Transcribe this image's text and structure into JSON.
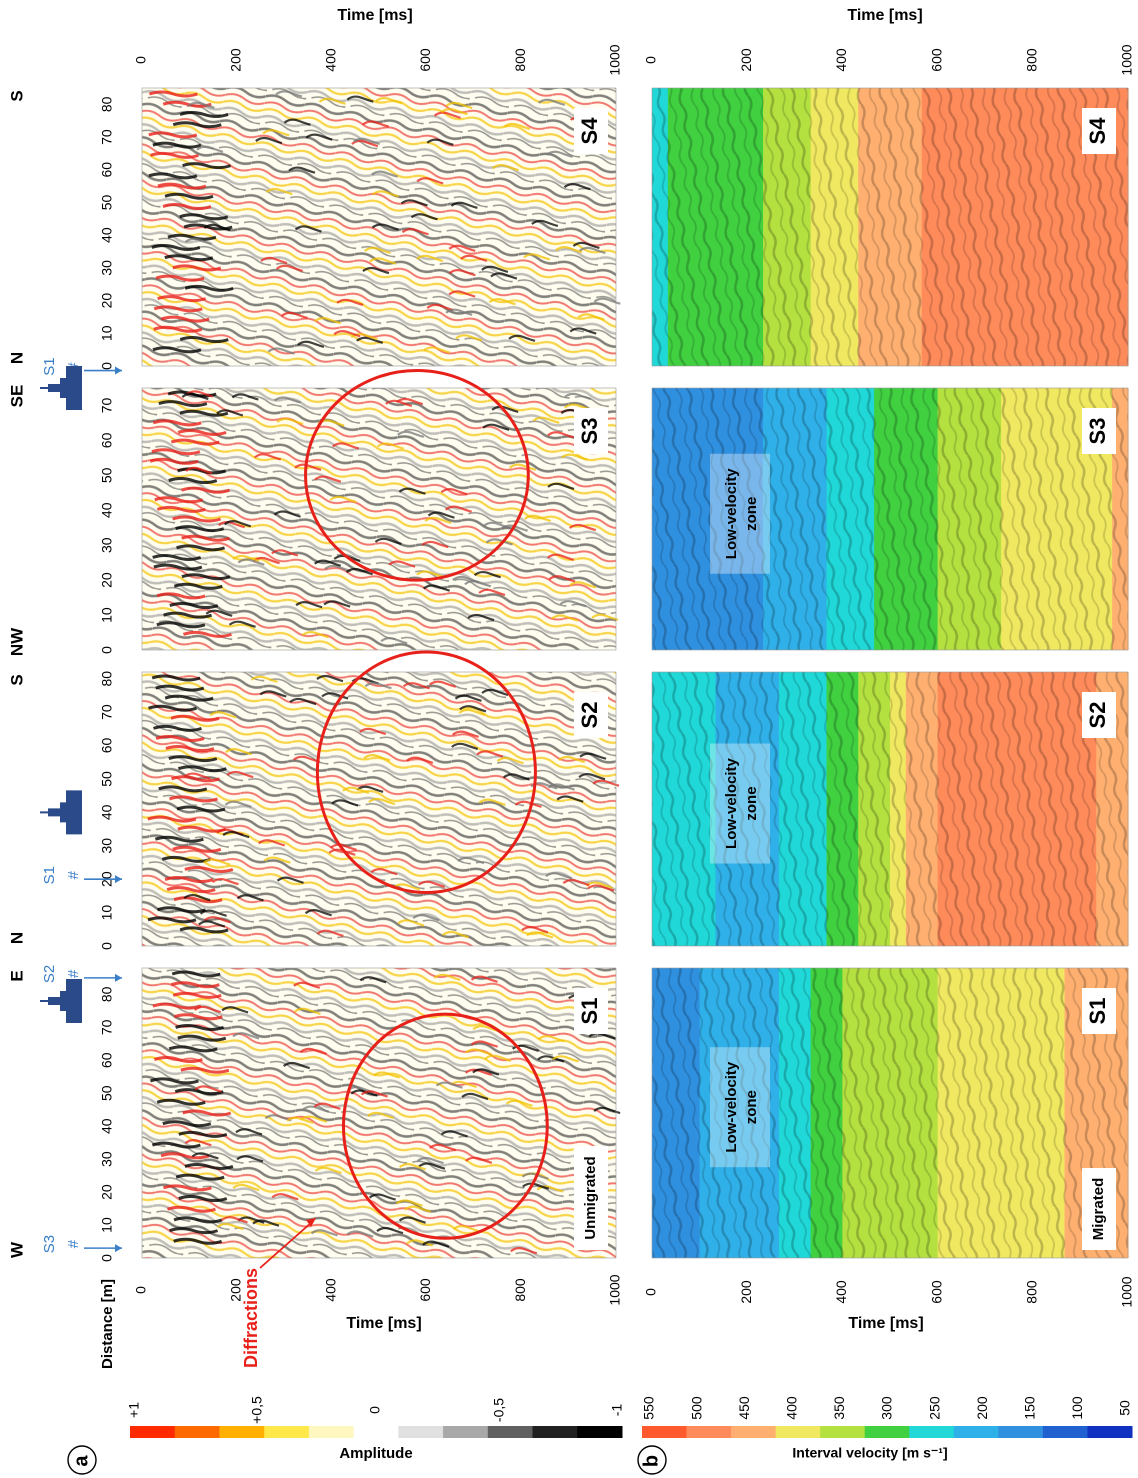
{
  "panel_letters": [
    "a",
    "b"
  ],
  "axis_labels": {
    "time": "Time [ms]",
    "distance": "Distance [m]",
    "amplitude": "Amplitude",
    "velocity": "Interval velocity [m s⁻¹]"
  },
  "time_ticks": [
    "0",
    "200",
    "400",
    "600",
    "800",
    "1000"
  ],
  "distance_ticks": [
    "0",
    "10",
    "20",
    "30",
    "40",
    "50",
    "60",
    "70",
    "80"
  ],
  "amplitude_ticks": [
    "+1",
    "+0,5",
    "0",
    "-0,5",
    "-1"
  ],
  "velocity_ticks": [
    "550",
    "500",
    "450",
    "400",
    "350",
    "300",
    "250",
    "200",
    "150",
    "100",
    "50"
  ],
  "colors": {
    "amp_scale": [
      "#ff2a00",
      "#ff6a00",
      "#ffb000",
      "#ffe84a",
      "#fff7c0",
      "#ffffff",
      "#e0e0e0",
      "#a8a8a8",
      "#606060",
      "#202020",
      "#000000"
    ],
    "vel_scale": [
      "#ff5a2e",
      "#ff8a5a",
      "#ffb070",
      "#f0e860",
      "#b4e040",
      "#40d040",
      "#20d8d8",
      "#30b0e8",
      "#3090e0",
      "#2060d0",
      "#1030c0"
    ],
    "annotation_red": "#e8201a",
    "annotation_blue": "#3a7fc8",
    "church": "#2a4a8a"
  },
  "sections": [
    {
      "id": "S1",
      "label": "S1",
      "start_dir": "W",
      "end_dir": "E",
      "max_distance": 88,
      "crossings": [
        {
          "label": "S3",
          "distance": 3
        },
        {
          "label": "S2",
          "distance": 85
        }
      ],
      "church_distance": 78,
      "ellipse": {
        "d_center": 40,
        "t_center": 640,
        "d_radius": 34,
        "t_radius": 215
      }
    },
    {
      "id": "S2",
      "label": "S2",
      "start_dir": "N",
      "end_dir": "S",
      "max_distance": 82,
      "crossings": [
        {
          "label": "S1",
          "distance": 20
        }
      ],
      "church_distance": 40,
      "ellipse": {
        "d_center": 52,
        "t_center": 600,
        "d_radius": 36,
        "t_radius": 230
      }
    },
    {
      "id": "S3",
      "label": "S3",
      "start_dir": "NW",
      "end_dir": "SE",
      "max_distance": 75,
      "crossings": [
        {
          "label": "S1",
          "distance": 80
        }
      ],
      "church_distance": 75,
      "ellipse": {
        "d_center": 50,
        "t_center": 580,
        "d_radius": 30,
        "t_radius": 235
      }
    },
    {
      "id": "S4",
      "label": "S4",
      "start_dir": "N",
      "end_dir": "S",
      "max_distance": 85,
      "crossings": [],
      "church_distance": null,
      "ellipse": null
    }
  ],
  "annotations": {
    "unmigrated": "Unmigrated",
    "migrated": "Migrated",
    "diffractions": "Diffractions",
    "crossing_marker": "#",
    "low_velocity_line1": "Low-velocity",
    "low_velocity_line2": "zone",
    "low_velocity_sections": [
      "S1",
      "S2",
      "S3"
    ]
  },
  "chart_data": [
    {
      "type": "heatmap",
      "panel": "a",
      "mode": "Unmigrated seismic sections",
      "xlabel": "Distance [m]",
      "ylabel": "Time [ms]",
      "xlim": [
        0,
        85
      ],
      "ylim": [
        0,
        1000
      ],
      "colorbar": {
        "label": "Amplitude",
        "range": [
          -1,
          1
        ]
      },
      "series": [
        {
          "name": "S1",
          "start_direction": "W",
          "end_direction": "E"
        },
        {
          "name": "S2",
          "start_direction": "N",
          "end_direction": "S"
        },
        {
          "name": "S3",
          "start_direction": "NW",
          "end_direction": "SE"
        },
        {
          "name": "S4",
          "start_direction": "N",
          "end_direction": "S"
        }
      ]
    },
    {
      "type": "heatmap",
      "panel": "b",
      "mode": "Migrated interval velocity",
      "ylabel": "Time [ms]",
      "ylim": [
        0,
        1000
      ],
      "colorbar": {
        "label": "Interval velocity [m s-1]",
        "range": [
          50,
          550
        ]
      },
      "velocity_profiles": {
        "S1": {
          "t": [
            0,
            200,
            400,
            600,
            800,
            1000
          ],
          "v": [
            160,
            200,
            330,
            380,
            420,
            440
          ]
        },
        "S2": {
          "t": [
            0,
            200,
            400,
            600,
            800,
            1000
          ],
          "v": [
            250,
            200,
            300,
            500,
            500,
            450
          ]
        },
        "S3": {
          "t": [
            0,
            200,
            400,
            600,
            800,
            1000
          ],
          "v": [
            150,
            160,
            250,
            330,
            400,
            430
          ]
        },
        "S4": {
          "t": [
            0,
            200,
            400,
            600,
            800,
            1000
          ],
          "v": [
            270,
            320,
            420,
            500,
            510,
            510
          ]
        }
      }
    }
  ]
}
